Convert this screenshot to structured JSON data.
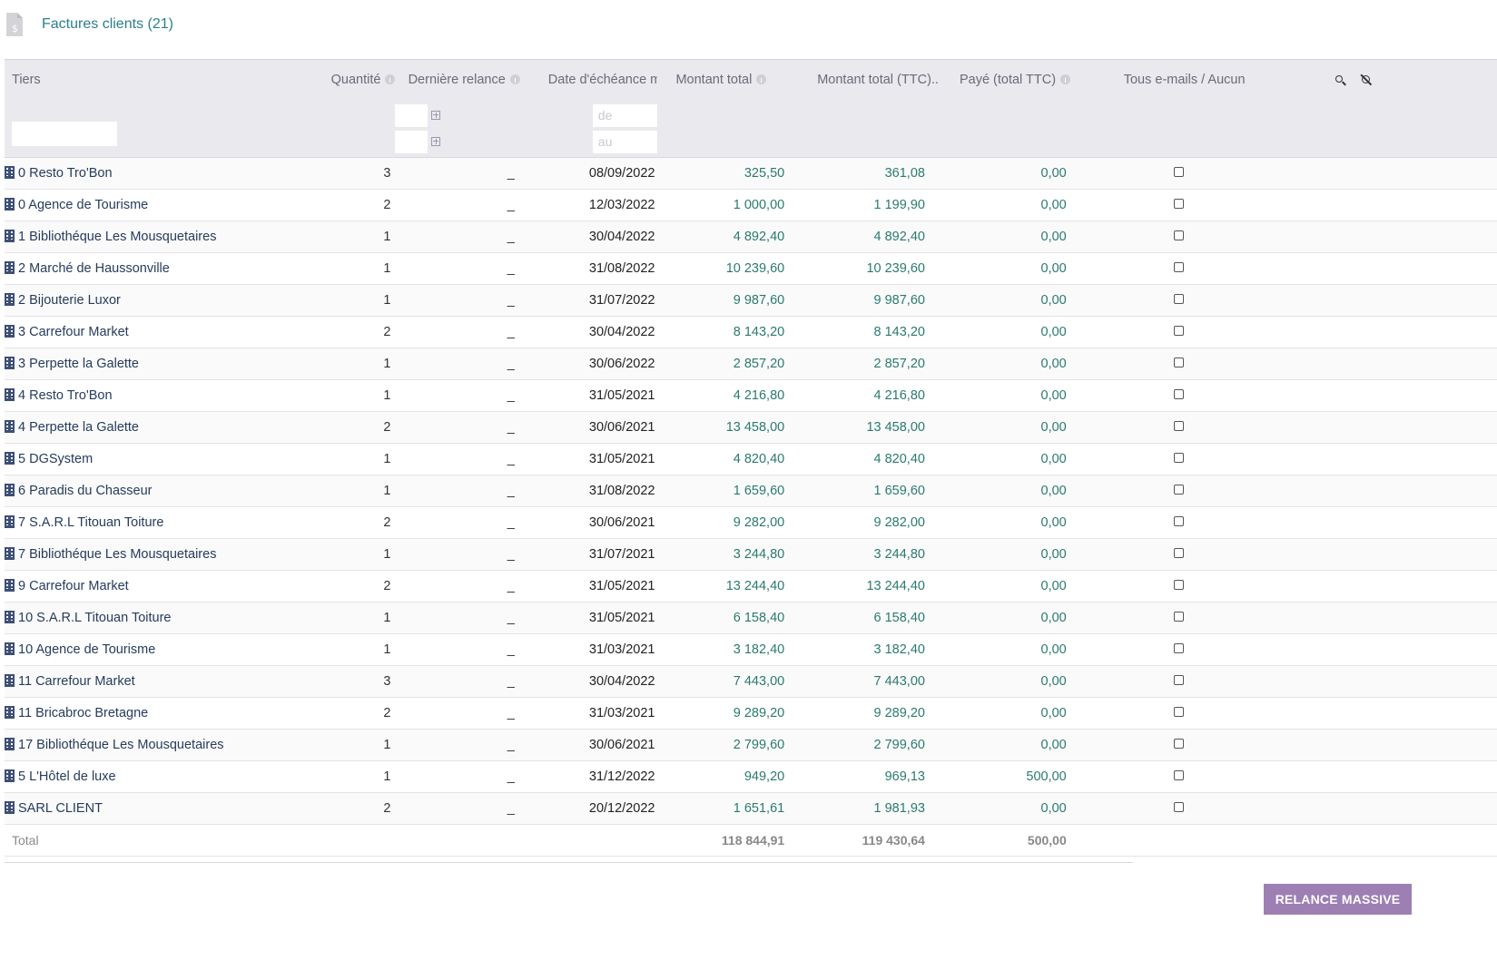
{
  "page": {
    "title": "Factures clients (21)",
    "title_icon": "invoice-document-icon"
  },
  "columns": {
    "tiers": "Tiers",
    "quantite": "Quantité",
    "derniere_relance": "Dernière relance",
    "date_echeance": "Date d'échéance mi...",
    "montant_total": "Montant total",
    "montant_ttc": "Montant total (TTC)...",
    "paye_ttc": "Payé (total TTC)",
    "emails": "Tous e-mails / Aucun"
  },
  "filters": {
    "from_placeholder": "de",
    "to_placeholder": "au"
  },
  "rows": [
    {
      "tiers": "0 Resto Tro'Bon",
      "qty": "3",
      "relance": "_",
      "date": "08/09/2022",
      "montant": "325,50",
      "ttc": "361,08",
      "paye": "0,00"
    },
    {
      "tiers": "0 Agence de Tourisme",
      "qty": "2",
      "relance": "_",
      "date": "12/03/2022",
      "montant": "1 000,00",
      "ttc": "1 199,90",
      "paye": "0,00"
    },
    {
      "tiers": "1 Bibliothéque Les Mousquetaires",
      "qty": "1",
      "relance": "_",
      "date": "30/04/2022",
      "montant": "4 892,40",
      "ttc": "4 892,40",
      "paye": "0,00"
    },
    {
      "tiers": "2 Marché de Haussonville",
      "qty": "1",
      "relance": "_",
      "date": "31/08/2022",
      "montant": "10 239,60",
      "ttc": "10 239,60",
      "paye": "0,00"
    },
    {
      "tiers": "2 Bijouterie Luxor",
      "qty": "1",
      "relance": "_",
      "date": "31/07/2022",
      "montant": "9 987,60",
      "ttc": "9 987,60",
      "paye": "0,00"
    },
    {
      "tiers": "3 Carrefour Market",
      "qty": "2",
      "relance": "_",
      "date": "30/04/2022",
      "montant": "8 143,20",
      "ttc": "8 143,20",
      "paye": "0,00"
    },
    {
      "tiers": "3 Perpette la Galette",
      "qty": "1",
      "relance": "_",
      "date": "30/06/2022",
      "montant": "2 857,20",
      "ttc": "2 857,20",
      "paye": "0,00"
    },
    {
      "tiers": "4 Resto Tro'Bon",
      "qty": "1",
      "relance": "_",
      "date": "31/05/2021",
      "montant": "4 216,80",
      "ttc": "4 216,80",
      "paye": "0,00"
    },
    {
      "tiers": "4 Perpette la Galette",
      "qty": "2",
      "relance": "_",
      "date": "30/06/2021",
      "montant": "13 458,00",
      "ttc": "13 458,00",
      "paye": "0,00"
    },
    {
      "tiers": "5 DGSystem",
      "qty": "1",
      "relance": "_",
      "date": "31/05/2021",
      "montant": "4 820,40",
      "ttc": "4 820,40",
      "paye": "0,00"
    },
    {
      "tiers": "6 Paradis du Chasseur",
      "qty": "1",
      "relance": "_",
      "date": "31/08/2022",
      "montant": "1 659,60",
      "ttc": "1 659,60",
      "paye": "0,00"
    },
    {
      "tiers": "7 S.A.R.L Titouan Toiture",
      "qty": "2",
      "relance": "_",
      "date": "30/06/2021",
      "montant": "9 282,00",
      "ttc": "9 282,00",
      "paye": "0,00"
    },
    {
      "tiers": "7 Bibliothéque Les Mousquetaires",
      "qty": "1",
      "relance": "_",
      "date": "31/07/2021",
      "montant": "3 244,80",
      "ttc": "3 244,80",
      "paye": "0,00"
    },
    {
      "tiers": "9 Carrefour Market",
      "qty": "2",
      "relance": "_",
      "date": "31/05/2021",
      "montant": "13 244,40",
      "ttc": "13 244,40",
      "paye": "0,00"
    },
    {
      "tiers": "10 S.A.R.L Titouan Toiture",
      "qty": "1",
      "relance": "_",
      "date": "31/05/2021",
      "montant": "6 158,40",
      "ttc": "6 158,40",
      "paye": "0,00"
    },
    {
      "tiers": "10 Agence de Tourisme",
      "qty": "1",
      "relance": "_",
      "date": "31/03/2021",
      "montant": "3 182,40",
      "ttc": "3 182,40",
      "paye": "0,00"
    },
    {
      "tiers": "11 Carrefour Market",
      "qty": "3",
      "relance": "_",
      "date": "30/04/2022",
      "montant": "7 443,00",
      "ttc": "7 443,00",
      "paye": "0,00"
    },
    {
      "tiers": "11 Bricabroc Bretagne",
      "qty": "2",
      "relance": "_",
      "date": "31/03/2021",
      "montant": "9 289,20",
      "ttc": "9 289,20",
      "paye": "0,00"
    },
    {
      "tiers": "17 Bibliothéque Les Mousquetaires",
      "qty": "1",
      "relance": "_",
      "date": "30/06/2021",
      "montant": "2 799,60",
      "ttc": "2 799,60",
      "paye": "0,00"
    },
    {
      "tiers": "5 L'Hôtel de luxe",
      "qty": "1",
      "relance": "_",
      "date": "31/12/2022",
      "montant": "949,20",
      "ttc": "969,13",
      "paye": "500,00"
    },
    {
      "tiers": "SARL CLIENT",
      "qty": "2",
      "relance": "_",
      "date": "20/12/2022",
      "montant": "1 651,61",
      "ttc": "1 981,93",
      "paye": "0,00"
    }
  ],
  "totals": {
    "label": "Total",
    "montant": "118 844,91",
    "ttc": "119 430,64",
    "paye": "500,00"
  },
  "actions": {
    "relance_massive": "RELANCE MASSIVE"
  },
  "colors": {
    "title": "#2a7f8f",
    "amount": "#2a7a6e",
    "button": "#9d7fb4",
    "header_bg": "#e9e9ee"
  }
}
